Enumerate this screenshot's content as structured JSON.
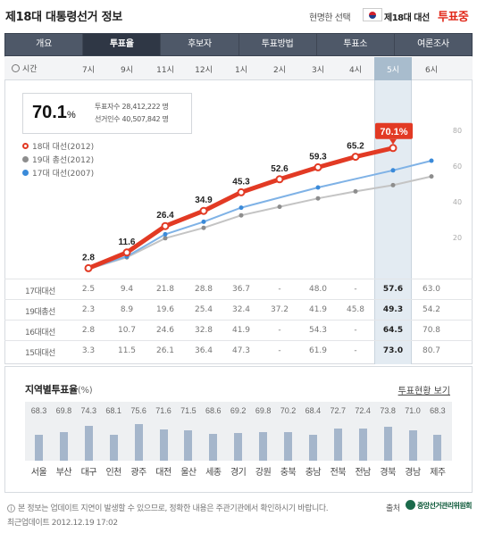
{
  "header": {
    "title": "제18대 대통령선거 정보",
    "slogan": "현명한 선택",
    "election": "제18대 대선",
    "status": "투표중"
  },
  "tabs": [
    "개요",
    "투표율",
    "후보자",
    "투표방법",
    "투표소",
    "여론조사"
  ],
  "active_tab": 1,
  "timebar": {
    "label": "시간",
    "hours": [
      "7시",
      "9시",
      "11시",
      "12시",
      "1시",
      "2시",
      "3시",
      "4시",
      "5시",
      "6시"
    ],
    "selected": 8
  },
  "summary": {
    "rate": "70.1",
    "unit": "%",
    "voters_label": "투표자수",
    "voters_value": "28,412,222 명",
    "electorate_label": "선거인수",
    "electorate_value": "40,507,842 명"
  },
  "legend": [
    {
      "label": "18대 대선(2012)",
      "color": "#e23a24"
    },
    {
      "label": "19대 총선(2012)",
      "color": "#8d8d8d"
    },
    {
      "label": "17대 대선(2007)",
      "color": "#3a8ad9"
    }
  ],
  "chart_data": {
    "type": "line",
    "x": [
      "7시",
      "9시",
      "11시",
      "12시",
      "1시",
      "2시",
      "3시",
      "4시",
      "5시",
      "6시"
    ],
    "ylim": [
      0,
      80
    ],
    "yticks": [
      "80",
      "60",
      "40",
      "20"
    ],
    "series": [
      {
        "name": "18대 대선(2012)",
        "color": "#e23a24",
        "values": [
          2.8,
          11.6,
          26.4,
          34.9,
          45.3,
          52.6,
          59.3,
          65.2,
          70.1,
          null
        ],
        "labels": [
          "2.8",
          "11.6",
          "26.4",
          "34.9",
          "45.3",
          "52.6",
          "59.3",
          "65.2",
          "70.1%",
          ""
        ]
      },
      {
        "name": "19대 총선(2012)",
        "color": "#8d8d8d",
        "values": [
          2.3,
          8.9,
          19.6,
          25.4,
          32.4,
          37.2,
          41.9,
          45.8,
          49.3,
          54.2
        ]
      },
      {
        "name": "17대 대선(2007)",
        "color": "#3a8ad9",
        "values": [
          2.5,
          9.4,
          21.8,
          28.8,
          36.7,
          null,
          48.0,
          null,
          57.6,
          63.0
        ]
      }
    ]
  },
  "table": [
    {
      "name": "17대대선",
      "values": [
        "2.5",
        "9.4",
        "21.8",
        "28.8",
        "36.7",
        "-",
        "48.0",
        "-",
        "57.6",
        "63.0"
      ]
    },
    {
      "name": "19대총선",
      "values": [
        "2.3",
        "8.9",
        "19.6",
        "25.4",
        "32.4",
        "37.2",
        "41.9",
        "45.8",
        "49.3",
        "54.2"
      ]
    },
    {
      "name": "16대대선",
      "values": [
        "2.8",
        "10.7",
        "24.6",
        "32.8",
        "41.9",
        "-",
        "54.3",
        "-",
        "64.5",
        "70.8"
      ]
    },
    {
      "name": "15대대선",
      "values": [
        "3.3",
        "11.5",
        "26.1",
        "36.4",
        "47.3",
        "-",
        "61.9",
        "-",
        "73.0",
        "80.7"
      ]
    }
  ],
  "regional": {
    "title": "지역별투표율",
    "unit": "(%)",
    "more": "투표현황 보기",
    "items": [
      {
        "name": "서울",
        "value": 68.3
      },
      {
        "name": "부산",
        "value": 69.8
      },
      {
        "name": "대구",
        "value": 74.3
      },
      {
        "name": "인천",
        "value": 68.1
      },
      {
        "name": "광주",
        "value": 75.6
      },
      {
        "name": "대전",
        "value": 71.6
      },
      {
        "name": "울산",
        "value": 71.5
      },
      {
        "name": "세종",
        "value": 68.6
      },
      {
        "name": "경기",
        "value": 69.2
      },
      {
        "name": "강원",
        "value": 69.8
      },
      {
        "name": "충북",
        "value": 70.2
      },
      {
        "name": "충남",
        "value": 68.4
      },
      {
        "name": "전북",
        "value": 72.7
      },
      {
        "name": "전남",
        "value": 72.4
      },
      {
        "name": "경북",
        "value": 73.8
      },
      {
        "name": "경남",
        "value": 71.0
      },
      {
        "name": "제주",
        "value": 68.3
      }
    ]
  },
  "footer": {
    "notice": "본 정보는 업데이트 지연이 발생할 수 있으므로, 정확한 내용은 주관기관에서 확인하시기 바랍니다.",
    "updated": "최근업데이트 2012.12.19 17:02",
    "source_label": "출처",
    "source_name": "중앙선거관리위원회"
  }
}
